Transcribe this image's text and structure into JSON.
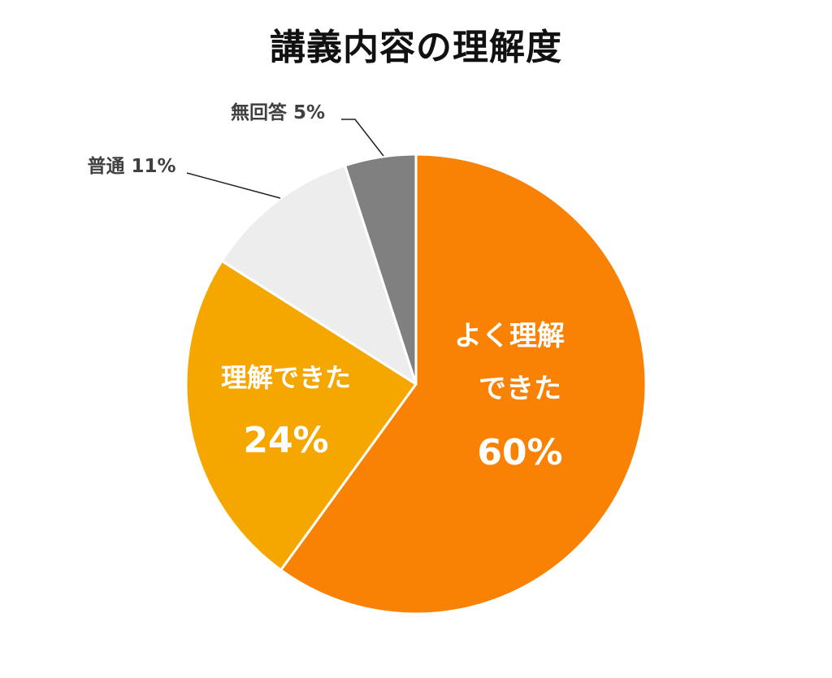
{
  "chart_data": {
    "type": "pie",
    "title": "講義内容の理解度",
    "slices": [
      {
        "label": "よく理解できた",
        "value": 60,
        "value_label": "60%",
        "color": "#F98205"
      },
      {
        "label": "理解できた",
        "value": 24,
        "value_label": "24%",
        "color": "#F5A700"
      },
      {
        "label": "普通",
        "value": 11,
        "value_label": "11%",
        "color": "#EDEDED"
      },
      {
        "label": "無回答",
        "value": 5,
        "value_label": "5%",
        "color": "#808080"
      }
    ],
    "start_angle_deg": 0,
    "direction": "clockwise",
    "legend": "none"
  }
}
